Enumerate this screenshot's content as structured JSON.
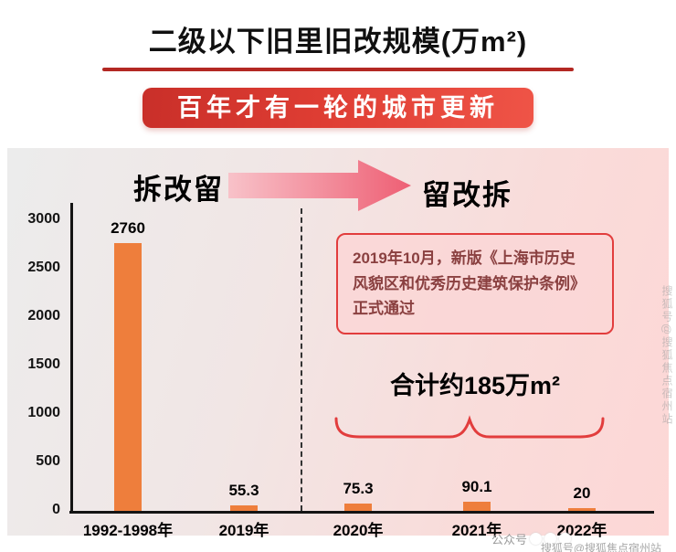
{
  "title": "二级以下旧里旧改规模(万m²)",
  "ribbon": "百年才有一轮的城市更新",
  "sections": {
    "left": "拆改留",
    "right": "留改拆"
  },
  "annotation": "2019年10月，新版《上海市历史\n风貌区和优秀历史建筑保护条例》\n正式通过",
  "total_label": "合计约185万m²",
  "watermarks": {
    "bottom_prefix": "公众号",
    "bottom_line2": "搜狐号@搜狐焦点宿州站",
    "side_vertical": "搜狐号@搜狐焦点宿州站"
  },
  "colors": {
    "bar": "#EE7E3C",
    "accent_red": "#E23D3D",
    "ribbon_red": "#D63A30",
    "background_left": "#ECECEC",
    "background_right": "#FDD7D6"
  },
  "chart_data": {
    "type": "bar",
    "title": "二级以下旧里旧改规模(万m²)",
    "categories": [
      "1992-1998年",
      "2019年",
      "2020年",
      "2021年",
      "2022年"
    ],
    "values": [
      2760,
      55.3,
      75.3,
      90.1,
      20
    ],
    "value_labels": [
      "2760",
      "55.3",
      "75.3",
      "90.1",
      "20"
    ],
    "yticks": [
      0,
      500,
      1000,
      1500,
      2000,
      2500,
      3000
    ],
    "ylim": [
      0,
      3200
    ],
    "xlabel": "",
    "ylabel": "",
    "grid": false,
    "legend": false,
    "bar_color": "#EE7E3C",
    "annotations": [
      "合计约185万m²",
      "2019年10月，新版《上海市历史风貌区和优秀历史建筑保护条例》正式通过"
    ]
  }
}
